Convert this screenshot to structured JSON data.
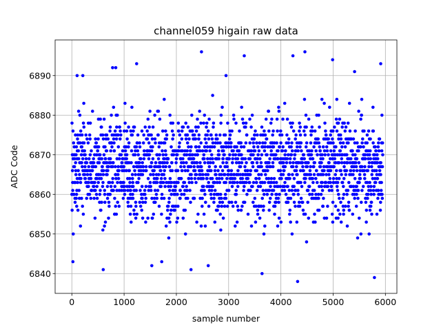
{
  "chart_data": {
    "type": "scatter",
    "title": "channel059 higain raw data",
    "xlabel": "sample number",
    "ylabel": "ADC Code",
    "xlim": [
      -320,
      6220
    ],
    "ylim": [
      6835,
      6899
    ],
    "x_ticks": [
      0,
      1000,
      2000,
      3000,
      4000,
      5000,
      6000
    ],
    "y_ticks": [
      6840,
      6850,
      6860,
      6870,
      6880,
      6890
    ],
    "x_tick_labels": [
      "0",
      "1000",
      "2000",
      "3000",
      "4000",
      "5000",
      "6000"
    ],
    "y_tick_labels": [
      "6840",
      "6850",
      "6860",
      "6870",
      "6880",
      "6890"
    ],
    "grid": true,
    "marker_color": "#0000ff",
    "sample_count": 5950,
    "series": [
      {
        "center": 6867,
        "core_range": [
          6850,
          6885
        ],
        "min": 6838,
        "max": 6896,
        "outliers": [
          {
            "x": 20,
            "y": 6843
          },
          {
            "x": 100,
            "y": 6890
          },
          {
            "x": 210,
            "y": 6890
          },
          {
            "x": 600,
            "y": 6841
          },
          {
            "x": 780,
            "y": 6892
          },
          {
            "x": 840,
            "y": 6892
          },
          {
            "x": 1240,
            "y": 6893
          },
          {
            "x": 1530,
            "y": 6842
          },
          {
            "x": 1720,
            "y": 6843
          },
          {
            "x": 2280,
            "y": 6841
          },
          {
            "x": 2480,
            "y": 6896
          },
          {
            "x": 2610,
            "y": 6842
          },
          {
            "x": 2950,
            "y": 6890
          },
          {
            "x": 3300,
            "y": 6895
          },
          {
            "x": 3640,
            "y": 6840
          },
          {
            "x": 4230,
            "y": 6895
          },
          {
            "x": 4320,
            "y": 6838
          },
          {
            "x": 4460,
            "y": 6896
          },
          {
            "x": 4990,
            "y": 6894
          },
          {
            "x": 5410,
            "y": 6891
          },
          {
            "x": 5790,
            "y": 6839
          },
          {
            "x": 5910,
            "y": 6893
          }
        ]
      }
    ]
  }
}
